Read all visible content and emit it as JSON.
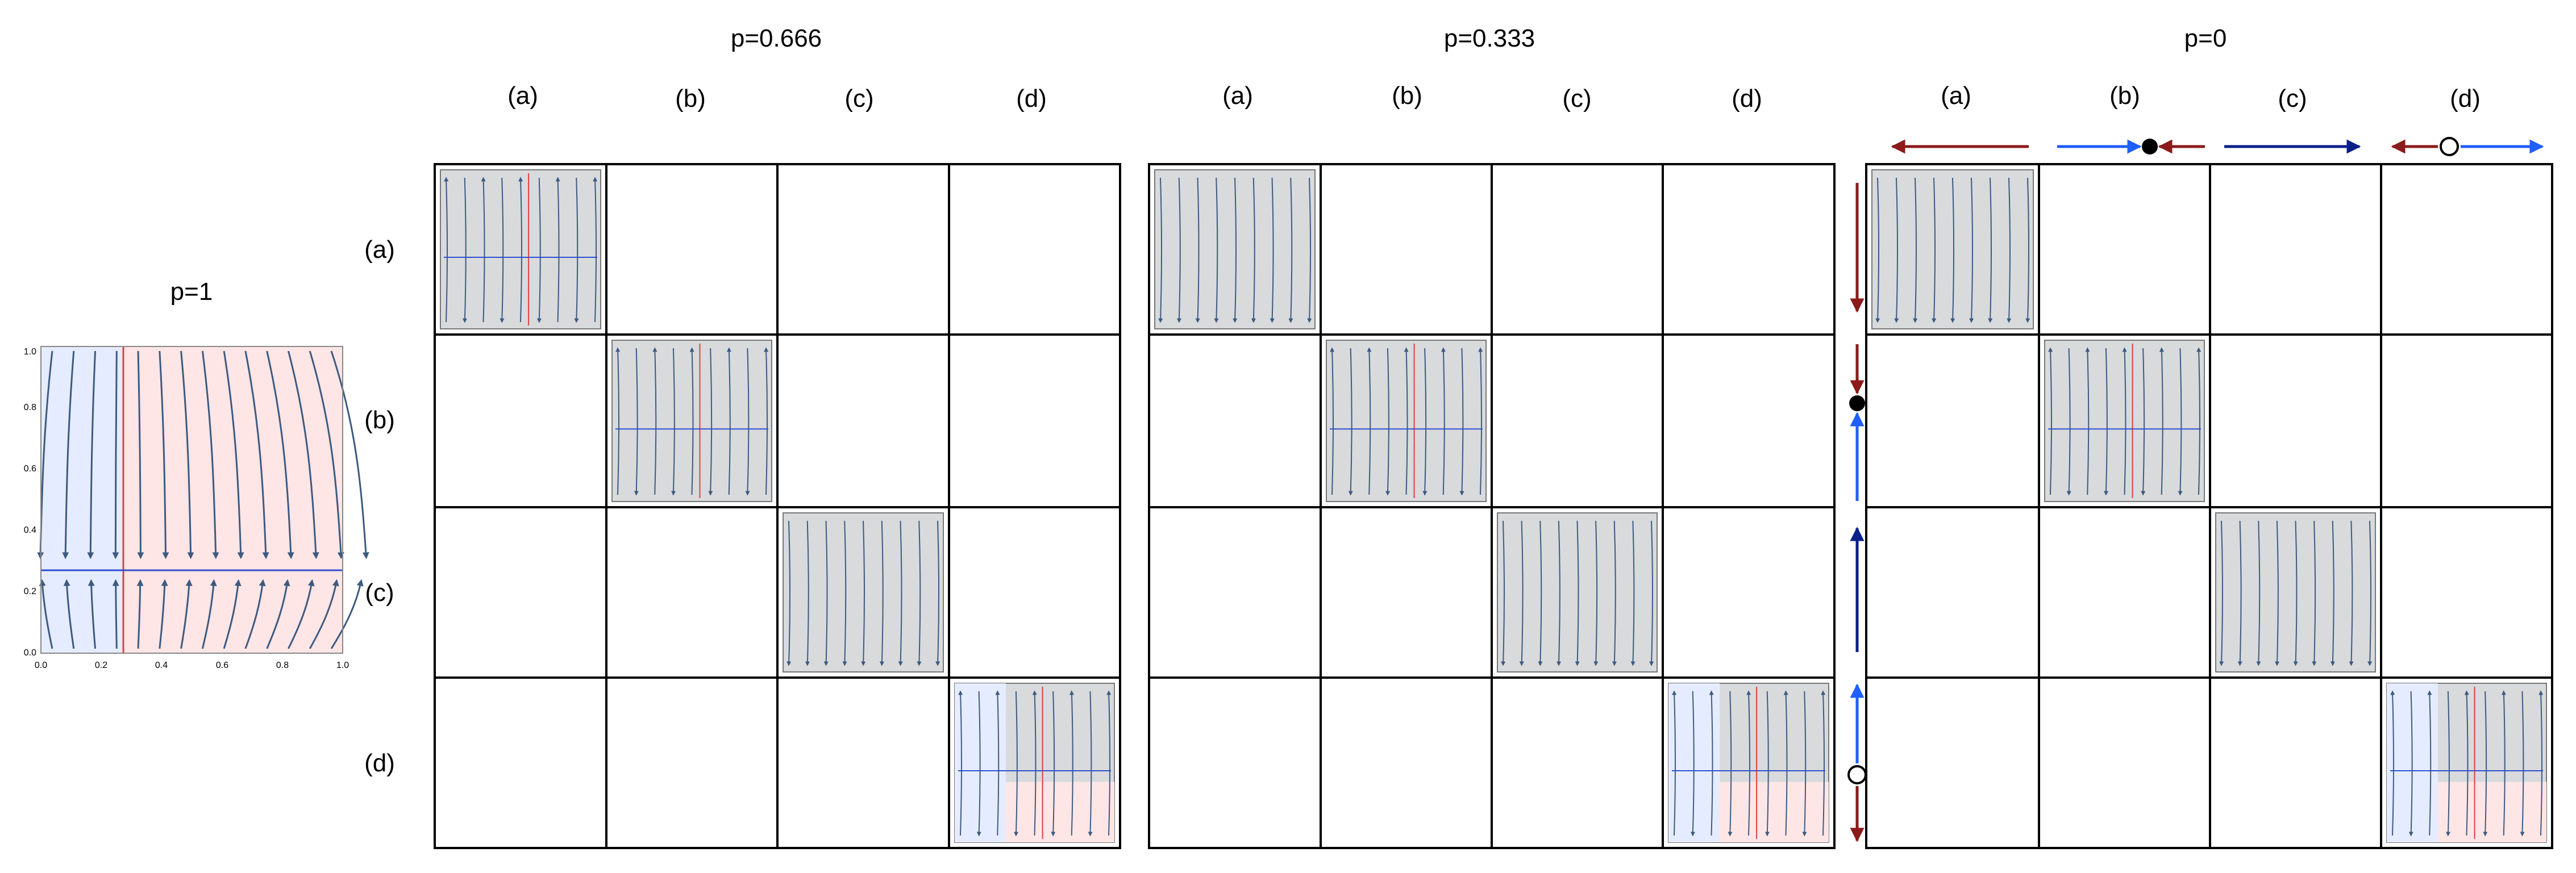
{
  "p1": {
    "title": "p=1",
    "ticks": [
      "0.0",
      "0.2",
      "0.4",
      "0.6",
      "0.8",
      "1.0"
    ]
  },
  "panels": [
    {
      "title": "p=0.666",
      "col_labels": [
        "(a)",
        "(b)",
        "(c)",
        "(d)"
      ],
      "row_labels": [
        "(a)",
        "(b)",
        "(c)",
        "(d)"
      ]
    },
    {
      "title": "p=0.333",
      "col_labels": [
        "(a)",
        "(b)",
        "(c)",
        "(d)"
      ]
    },
    {
      "title": "p=0",
      "col_labels": [
        "(a)",
        "(b)",
        "(c)",
        "(d)"
      ]
    }
  ],
  "colors": {
    "dark_red": "#8b1a1a",
    "blue": "#1f5eff",
    "navy": "#0b1f8a",
    "stream": "#3d5a80",
    "grid_line": "#000000",
    "plot_bg": "#d8dadc",
    "blue_tint": "#e6ecff",
    "red_tint": "#ffe6e6",
    "red_line": "#e04040",
    "blue_line": "#3050d0"
  },
  "phase_markers": {
    "col": [
      "arrow-left",
      "stable-point",
      "arrow-right",
      "unstable-point"
    ],
    "row": [
      "arrow-down",
      "stable-point",
      "arrow-up",
      "unstable-point"
    ]
  }
}
